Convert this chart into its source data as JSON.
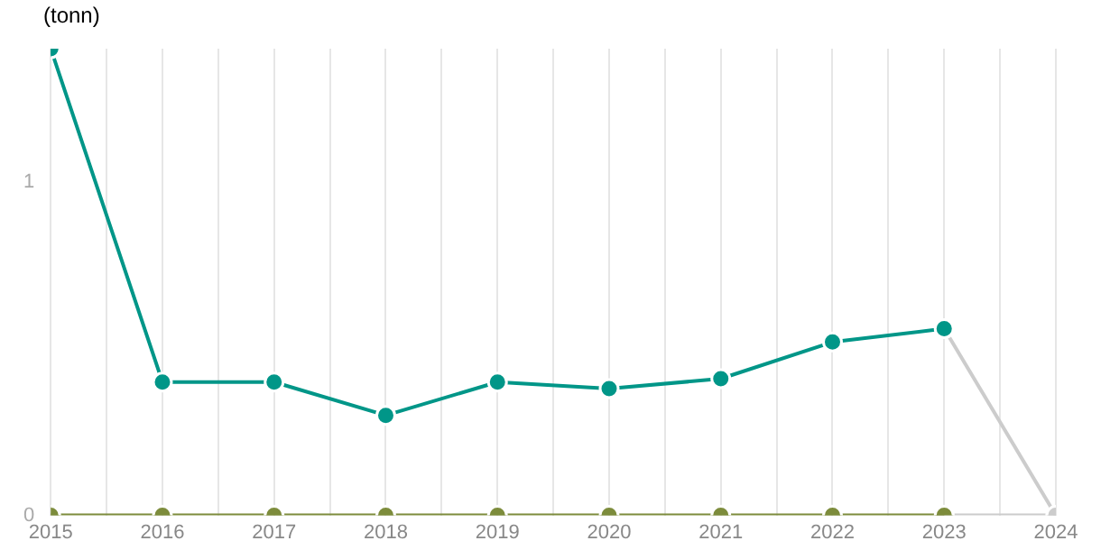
{
  "chart_data": {
    "type": "line",
    "ylabel": "(tonn)",
    "x": [
      2015,
      2016,
      2017,
      2018,
      2019,
      2020,
      2021,
      2022,
      2023,
      2024
    ],
    "series": [
      {
        "color": "#009688",
        "values": [
          1.4,
          0.4,
          0.4,
          0.3,
          0.4,
          0.38,
          0.41,
          0.52,
          0.56,
          null
        ]
      },
      {
        "color": "#7d8c3c",
        "values": [
          0,
          0,
          0,
          0,
          0,
          0,
          0,
          0,
          0,
          null
        ]
      },
      {
        "color": "#cccccc",
        "values": [
          null,
          null,
          null,
          null,
          null,
          null,
          null,
          null,
          0.56,
          0
        ]
      },
      {
        "color": "#cccccc",
        "values": [
          null,
          null,
          null,
          null,
          null,
          null,
          null,
          null,
          0,
          0
        ]
      }
    ],
    "xlim": [
      2015,
      2024
    ],
    "xticks": [
      2015,
      {
        "value": 2015.5,
        "label": null
      },
      2016,
      {
        "value": 2016.5,
        "label": null
      },
      2017,
      {
        "value": 2017.5,
        "label": null
      },
      2018,
      {
        "value": 2018.5,
        "label": null
      },
      2019,
      {
        "value": 2019.5,
        "label": null
      },
      2020,
      {
        "value": 2020.5,
        "label": null
      },
      2021,
      {
        "value": 2021.5,
        "label": null
      },
      2022,
      {
        "value": 2022.5,
        "label": null
      },
      2023,
      {
        "value": 2023.5,
        "label": null
      },
      2024
    ],
    "ylim": [
      0,
      1.4
    ],
    "yticks": [
      0,
      1
    ],
    "grid": "x",
    "legend": false,
    "marker": "circle",
    "line_style": "solid"
  }
}
